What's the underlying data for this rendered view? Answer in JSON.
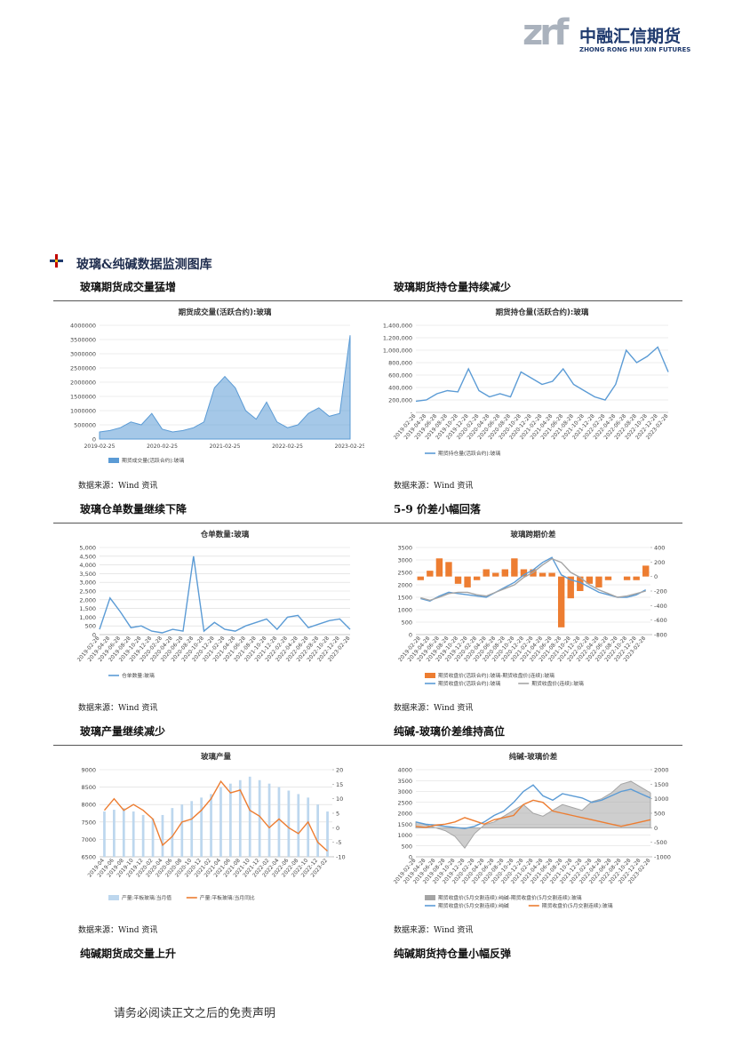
{
  "header": {
    "logo_mark": "zrf",
    "logo_cn": "中融汇信期货",
    "logo_en": "ZHONG RONG HUI XIN FUTURES"
  },
  "section_title": "玻璃&纯碱数据监测图库",
  "panels": [
    {
      "heading": "玻璃期货成交量猛增",
      "source": "数据来源：Wind 资讯",
      "chart": {
        "type": "line",
        "title": "期货成交量(活跃合约):玻璃",
        "categories": [
          "2019-02-25",
          null,
          null,
          null,
          null,
          null,
          "2020-02-25",
          null,
          null,
          null,
          null,
          null,
          "2021-02-25",
          null,
          null,
          null,
          null,
          null,
          "2022-02-25",
          null,
          null,
          null,
          null,
          null,
          "2023-02-25"
        ],
        "ylim": [
          0,
          4000000
        ],
        "yticks": [
          0,
          500000,
          1000000,
          1500000,
          2000000,
          2500000,
          3000000,
          3500000,
          4000000
        ],
        "grid": true,
        "series": [
          {
            "name": "期货成交量(活跃合约):玻璃",
            "type": "area",
            "color": "#5b9bd5",
            "values": [
              250000,
              300000,
              400000,
              600000,
              500000,
              900000,
              350000,
              250000,
              300000,
              400000,
              600000,
              1800000,
              2200000,
              1800000,
              1000000,
              700000,
              1300000,
              600000,
              400000,
              500000,
              900000,
              1100000,
              800000,
              900000,
              3650000
            ]
          }
        ]
      }
    },
    {
      "heading": "玻璃期货持仓量持续减少",
      "source": "数据来源：Wind 资讯",
      "chart": {
        "type": "line",
        "title": "期货持仓量(活跃合约):玻璃",
        "categories": [
          "2019-02-28",
          "2019-04-28",
          "2019-06-28",
          "2019-08-28",
          "2019-10-28",
          "2019-12-28",
          "2020-02-28",
          "2020-04-28",
          "2020-06-28",
          "2020-08-28",
          "2020-10-28",
          "2020-12-28",
          "2021-02-28",
          "2021-04-28",
          "2021-06-28",
          "2021-08-28",
          "2021-10-28",
          "2021-12-28",
          "2022-02-28",
          "2022-04-28",
          "2022-06-28",
          "2022-08-28",
          "2022-10-28",
          "2022-12-28",
          "2023-02-28"
        ],
        "ylim": [
          0,
          1400000
        ],
        "yticks": [
          {
            "value": 0,
            "label": "-"
          },
          {
            "value": 200000,
            "label": "200,000"
          },
          {
            "value": 400000,
            "label": "400,000"
          },
          {
            "value": 600000,
            "label": "600,000"
          },
          {
            "value": 800000,
            "label": "800,000"
          },
          {
            "value": 1000000,
            "label": "1,000,000"
          },
          {
            "value": 1200000,
            "label": "1,200,000"
          },
          {
            "value": 1400000,
            "label": "1,400,000"
          }
        ],
        "grid": true,
        "series": [
          {
            "name": "期货持仓量(活跃合约):玻璃",
            "type": "line",
            "color": "#5b9bd5",
            "values": [
              180000,
              200000,
              300000,
              350000,
              330000,
              700000,
              350000,
              250000,
              300000,
              250000,
              650000,
              550000,
              450000,
              500000,
              700000,
              450000,
              350000,
              250000,
              200000,
              450000,
              1000000,
              800000,
              900000,
              1050000,
              650000
            ]
          }
        ]
      }
    },
    {
      "heading": "玻璃仓单数量继续下降",
      "source": "数据来源：Wind 资讯",
      "chart": {
        "type": "line",
        "title": "仓单数量:玻璃",
        "categories": [
          "2019-02-28",
          "2019-04-28",
          "2019-06-28",
          "2019-08-28",
          "2019-10-28",
          "2019-12-28",
          "2020-02-28",
          "2020-04-28",
          "2020-06-28",
          "2020-08-28",
          "2020-10-28",
          "2020-12-28",
          "2021-02-28",
          "2021-04-28",
          "2021-06-28",
          "2021-08-28",
          "2021-10-28",
          "2021-12-28",
          "2022-02-28",
          "2022-04-28",
          "2022-06-28",
          "2022-08-28",
          "2022-10-28",
          "2022-12-28",
          "2023-02-28"
        ],
        "ylim": [
          0,
          5000
        ],
        "yticks": [
          0,
          500,
          {
            "value": 1000,
            "label": "1,000"
          },
          {
            "value": 1500,
            "label": "1,500"
          },
          {
            "value": 2000,
            "label": "2,000"
          },
          {
            "value": 2500,
            "label": "2,500"
          },
          {
            "value": 3000,
            "label": "3,000"
          },
          {
            "value": 3500,
            "label": "3,500"
          },
          {
            "value": 4000,
            "label": "4,000"
          },
          {
            "value": 4500,
            "label": "4,500"
          },
          {
            "value": 5000,
            "label": "5,000"
          }
        ],
        "grid": true,
        "series": [
          {
            "name": "仓单数量:玻璃",
            "type": "line",
            "color": "#5b9bd5",
            "values": [
              300,
              2100,
              1300,
              400,
              500,
              200,
              100,
              300,
              200,
              4500,
              200,
              700,
              300,
              200,
              500,
              700,
              900,
              300,
              1000,
              1100,
              400,
              600,
              800,
              900,
              300
            ]
          }
        ]
      }
    },
    {
      "heading": "5-9 价差小幅回落",
      "source": "数据来源：Wind 资讯",
      "chart": {
        "type": "combo",
        "title": "玻璃跨期价差",
        "categories": [
          "2019-02-28",
          "2019-04-28",
          "2019-06-28",
          "2019-08-28",
          "2019-10-28",
          "2019-12-28",
          "2020-02-28",
          "2020-04-28",
          "2020-06-28",
          "2020-08-28",
          "2020-10-28",
          "2020-12-28",
          "2021-02-28",
          "2021-04-28",
          "2021-06-28",
          "2021-08-28",
          "2021-10-28",
          "2021-12-28",
          "2022-02-28",
          "2022-04-28",
          "2022-06-28",
          "2022-08-28",
          "2022-10-28",
          "2022-12-28",
          "2023-02-28"
        ],
        "ylim": [
          0,
          3500
        ],
        "yticks": [
          0,
          500,
          1000,
          1500,
          2000,
          2500,
          3000,
          3500
        ],
        "y2lim": [
          -800,
          400
        ],
        "y2ticks": [
          -800,
          -600,
          -400,
          -200,
          0,
          200,
          400
        ],
        "grid": true,
        "series": [
          {
            "name": "期货收盘价(活跃合约):玻璃-期货收盘价(连续):玻璃",
            "type": "bar",
            "axis": "y2",
            "color": "#ed7d31",
            "values": [
              -50,
              80,
              250,
              200,
              -100,
              -150,
              -50,
              100,
              50,
              100,
              250,
              100,
              100,
              50,
              50,
              -700,
              -300,
              -200,
              -100,
              -150,
              -50,
              0,
              -50,
              -50,
              150
            ]
          },
          {
            "name": "期货收盘价(活跃合约):玻璃",
            "type": "line",
            "color": "#5b9bd5",
            "values": [
              1450,
              1350,
              1550,
              1700,
              1650,
              1600,
              1550,
              1500,
              1700,
              1900,
              2100,
              2400,
              2600,
              2900,
              3100,
              2400,
              2200,
              2100,
              1900,
              1700,
              1600,
              1500,
              1500,
              1600,
              1800
            ]
          },
          {
            "name": "期货收盘价(连续):玻璃",
            "type": "line",
            "color": "#a5a5a5",
            "values": [
              1480,
              1380,
              1500,
              1650,
              1700,
              1700,
              1600,
              1550,
              1700,
              1850,
              2000,
              2300,
              2500,
              2800,
              3050,
              2900,
              2500,
              2300,
              2000,
              1800,
              1650,
              1500,
              1550,
              1650,
              1750
            ]
          }
        ]
      }
    },
    {
      "heading": "玻璃产量继续减少",
      "source": "数据来源：Wind 资讯",
      "chart": {
        "type": "combo",
        "title": "玻璃产量",
        "categories": [
          "2019-04",
          "2019-06",
          "2019-08",
          "2019-10",
          "2019-12",
          "2020-02",
          "2020-04",
          "2020-06",
          "2020-08",
          "2020-10",
          "2020-12",
          "2021-02",
          "2021-04",
          "2021-06",
          "2021-08",
          "2021-10",
          "2021-12",
          "2022-02",
          "2022-04",
          "2022-06",
          "2022-08",
          "2022-10",
          "2022-12",
          "2023-02"
        ],
        "ylim": [
          6500,
          9000
        ],
        "yticks": [
          6500,
          7000,
          7500,
          8000,
          8500,
          9000
        ],
        "y2lim": [
          -10,
          20
        ],
        "y2ticks": [
          -10,
          -5,
          0,
          5,
          10,
          15,
          20
        ],
        "grid": true,
        "series": [
          {
            "name": "产量:平板玻璃:当月值",
            "type": "bar",
            "color": "#bdd7ee",
            "values": [
              7800,
              7850,
              7900,
              7800,
              7700,
              7600,
              7700,
              7900,
              8000,
              8100,
              8200,
              8300,
              8500,
              8600,
              8700,
              8800,
              8700,
              8600,
              8500,
              8400,
              8300,
              8200,
              8000,
              7800
            ]
          },
          {
            "name": "产量:平板玻璃:当月同比",
            "type": "line",
            "axis": "y2",
            "color": "#ed7d31",
            "values": [
              6,
              10,
              6,
              8,
              6,
              3,
              -6,
              -3,
              2,
              3,
              6,
              10,
              16,
              12,
              13,
              6,
              4,
              0,
              3,
              0,
              -2,
              2,
              -5,
              -8
            ]
          }
        ]
      }
    },
    {
      "heading": "纯碱-玻璃价差维持高位",
      "source": "数据来源：Wind 资讯",
      "chart": {
        "type": "combo",
        "title": "纯碱-玻璃价差",
        "categories": [
          "2019-02-28",
          "2019-04-28",
          "2019-06-28",
          "2019-08-28",
          "2019-10-28",
          "2019-12-28",
          "2020-02-28",
          "2020-04-28",
          "2020-06-28",
          "2020-08-28",
          "2020-10-28",
          "2020-12-28",
          "2021-02-28",
          "2021-04-28",
          "2021-06-28",
          "2021-08-28",
          "2021-10-28",
          "2021-12-28",
          "2022-02-28",
          "2022-04-28",
          "2022-06-28",
          "2022-08-28",
          "2022-10-28",
          "2022-12-28",
          "2023-02-28"
        ],
        "ylim": [
          0,
          4000
        ],
        "yticks": [
          0,
          500,
          1000,
          1500,
          2000,
          2500,
          3000,
          3500,
          4000
        ],
        "y2lim": [
          -1000,
          2000
        ],
        "y2ticks": [
          -1000,
          -500,
          0,
          500,
          1000,
          1500,
          2000
        ],
        "grid": true,
        "series": [
          {
            "name": "期货收盘价(5月交割连续):纯碱-期货收盘价(5月交割连续):玻璃",
            "type": "area",
            "axis": "y2",
            "color": "#a5a5a5",
            "values": [
              200,
              100,
              0,
              -100,
              -300,
              -700,
              -200,
              100,
              200,
              400,
              600,
              800,
              500,
              400,
              600,
              800,
              700,
              600,
              900,
              1000,
              1200,
              1500,
              1600,
              1400,
              1200
            ]
          },
          {
            "name": "期货收盘价(5月交割连续):纯碱",
            "type": "line",
            "color": "#5b9bd5",
            "values": [
              1600,
              1500,
              1450,
              1400,
              1350,
              1300,
              1400,
              1600,
              1900,
              2100,
              2500,
              3000,
              3300,
              2800,
              2600,
              2900,
              2800,
              2700,
              2500,
              2600,
              2800,
              3000,
              3100,
              2900,
              2700
            ]
          },
          {
            "name": "期货收盘价(5月交割连续):玻璃",
            "type": "line",
            "color": "#ed7d31",
            "values": [
              1400,
              1350,
              1450,
              1500,
              1600,
              1800,
              1650,
              1500,
              1700,
              1800,
              1900,
              2400,
              2600,
              2500,
              2100,
              2000,
              1900,
              1800,
              1700,
              1600,
              1500,
              1400,
              1500,
              1600,
              1700
            ]
          }
        ]
      }
    },
    {
      "heading": "纯碱期货成交量上升"
    },
    {
      "heading": "纯碱期货持仓量小幅反弹"
    }
  ],
  "footer": "请务必阅读正文之后的免责声明"
}
